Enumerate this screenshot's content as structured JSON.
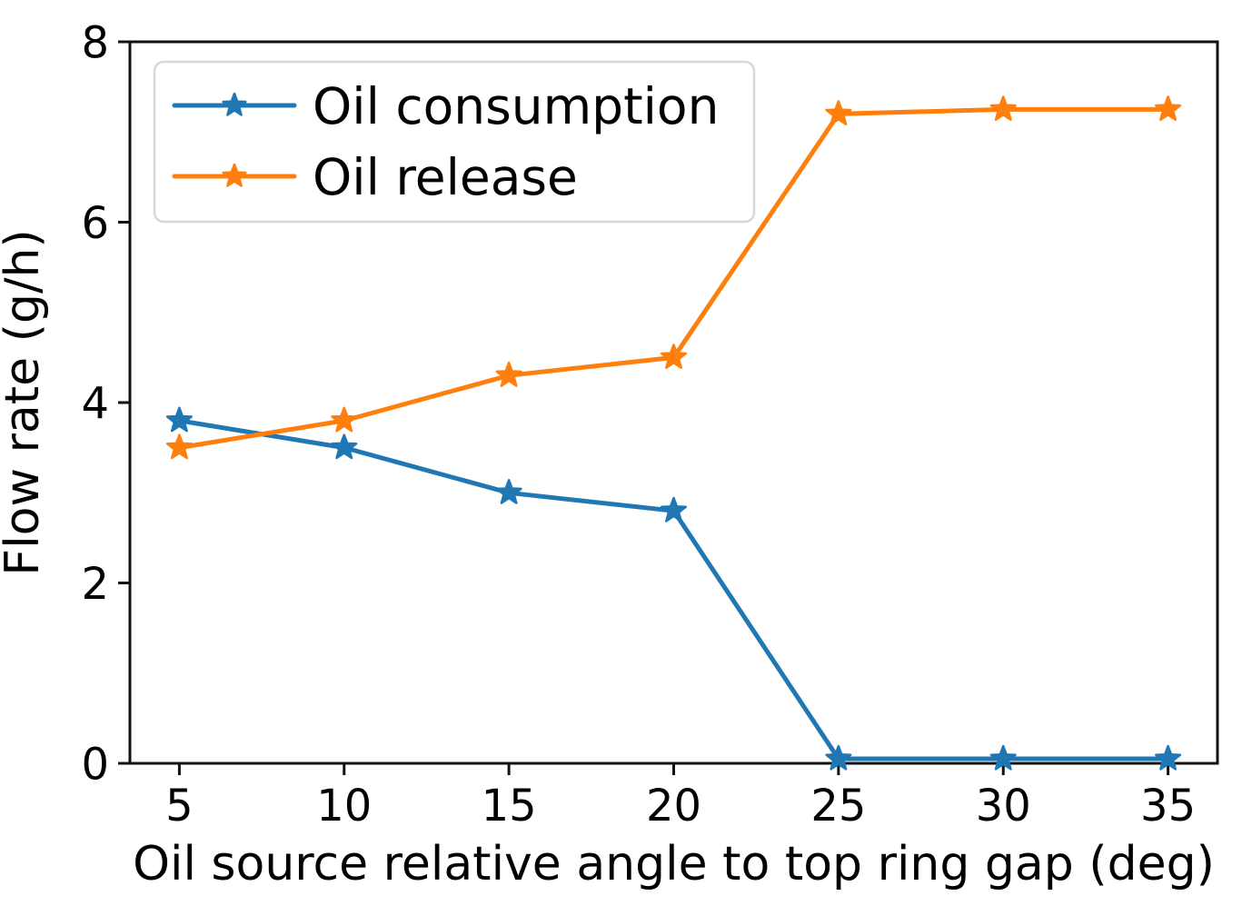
{
  "chart_data": {
    "type": "line",
    "title": "",
    "xlabel": "Oil source relative angle to top ring gap (deg)",
    "ylabel": "Flow rate (g/h)",
    "x": [
      5,
      10,
      15,
      20,
      25,
      30,
      35
    ],
    "series": [
      {
        "name": "Oil consumption",
        "color": "#1f77b4",
        "marker": "star",
        "values": [
          3.8,
          3.5,
          3.0,
          2.8,
          0.05,
          0.05,
          0.05
        ]
      },
      {
        "name": "Oil release",
        "color": "#ff7f0e",
        "marker": "star",
        "values": [
          3.5,
          3.8,
          4.3,
          4.5,
          7.2,
          7.25,
          7.25
        ]
      }
    ],
    "xticks": [
      5,
      10,
      15,
      20,
      25,
      30,
      35
    ],
    "yticks": [
      0,
      2,
      4,
      6,
      8
    ],
    "xlim": [
      3.5,
      36.5
    ],
    "ylim": [
      0,
      8
    ],
    "grid": false,
    "legend_position": "upper left",
    "axis_color": "#111111",
    "legend_border_color": "#d8d8d8",
    "legend_background": "#ffffff"
  }
}
